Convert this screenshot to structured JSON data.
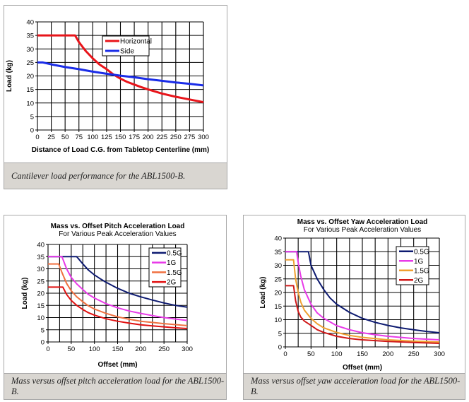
{
  "chart_data": [
    {
      "type": "line",
      "title": "",
      "subtitle": "",
      "xlabel": "Distance of Load C.G. from Tabletop Centerline (mm)",
      "ylabel": "Load (kg)",
      "xlim": [
        0,
        300
      ],
      "ylim": [
        0,
        40
      ],
      "xticks": [
        0,
        25,
        50,
        75,
        100,
        125,
        150,
        175,
        200,
        225,
        250,
        275,
        300
      ],
      "yticks": [
        0,
        5,
        10,
        15,
        20,
        25,
        30,
        35,
        40
      ],
      "grid": true,
      "legend_position": "top-center",
      "caption": "Cantilever load performance for the ABL1500-B.",
      "series": [
        {
          "name": "Horizontal",
          "color": "#e8141a",
          "x": [
            0,
            68,
            75,
            87,
            100,
            112,
            125,
            137,
            150,
            162,
            175,
            187,
            200,
            225,
            250,
            275,
            300
          ],
          "y": [
            35,
            35,
            32.5,
            29.3,
            26.5,
            24.3,
            22.5,
            20.6,
            19,
            17.8,
            16.8,
            15.9,
            15,
            13.5,
            12.3,
            11.3,
            10.3
          ]
        },
        {
          "name": "Side",
          "color": "#1a2ce8",
          "x": [
            0,
            10,
            25,
            50,
            75,
            100,
            125,
            150,
            175,
            200,
            225,
            250,
            275,
            300
          ],
          "y": [
            25,
            25,
            24.3,
            23.3,
            22.5,
            21.6,
            20.8,
            20.1,
            19.5,
            18.8,
            18.2,
            17.6,
            17.1,
            16.5
          ]
        }
      ]
    },
    {
      "type": "line",
      "title": "Mass vs. Offset Pitch Acceleration Load",
      "subtitle": "For Various Peak Acceleration Values",
      "xlabel": "Offset (mm)",
      "ylabel": "Load (kg)",
      "xlim": [
        0,
        300
      ],
      "ylim": [
        0,
        40
      ],
      "xticks": [
        0,
        50,
        100,
        150,
        200,
        250,
        300
      ],
      "yticks": [
        0,
        5,
        10,
        15,
        20,
        25,
        30,
        35,
        40
      ],
      "grid": true,
      "legend_position": "top-right",
      "caption": "Mass versus offset pitch acceleration load for the ABL1500-B.",
      "series": [
        {
          "name": "0.5G",
          "color": "#0d1a70",
          "x": [
            0,
            62,
            75,
            87,
            100,
            112,
            125,
            150,
            175,
            200,
            225,
            250,
            275,
            300
          ],
          "y": [
            35,
            35,
            32,
            29.5,
            27.5,
            26,
            24.5,
            22,
            20,
            18.5,
            17.2,
            16,
            15,
            14.3
          ]
        },
        {
          "name": "1G",
          "color": "#e83ae8",
          "x": [
            0,
            30,
            40,
            50,
            62,
            75,
            87,
            100,
            125,
            150,
            175,
            200,
            225,
            250,
            275,
            300
          ],
          "y": [
            35,
            35,
            30,
            26.5,
            23.8,
            21.5,
            19.5,
            18,
            15.7,
            14,
            12.7,
            11.7,
            10.8,
            10,
            9.4,
            8.8
          ]
        },
        {
          "name": "1.5G",
          "color": "#f07040",
          "x": [
            0,
            23,
            30,
            40,
            50,
            62,
            75,
            87,
            100,
            125,
            150,
            175,
            200,
            225,
            250,
            275,
            300
          ],
          "y": [
            32,
            32,
            28.5,
            24,
            21,
            18.5,
            16.5,
            14.8,
            13.5,
            11.7,
            10.3,
            9.3,
            8.5,
            8,
            7.5,
            7.1,
            6.7
          ]
        },
        {
          "name": "2G",
          "color": "#e01010",
          "x": [
            0,
            32,
            40,
            50,
            62,
            75,
            87,
            100,
            125,
            150,
            175,
            200,
            225,
            250,
            275,
            300
          ],
          "y": [
            22.5,
            22.5,
            19.5,
            17,
            15,
            13.3,
            12,
            11,
            9.5,
            8.5,
            7.7,
            7,
            6.6,
            6.2,
            5.8,
            5.5
          ]
        }
      ]
    },
    {
      "type": "line",
      "title": "Mass vs. Offset Yaw Acceleration Load",
      "subtitle": "For Various Peak Acceleration Values",
      "xlabel": "Offset (mm)",
      "ylabel": "Load (kg)",
      "xlim": [
        0,
        300
      ],
      "ylim": [
        0,
        40
      ],
      "xticks": [
        0,
        50,
        100,
        150,
        200,
        250,
        300
      ],
      "yticks": [
        0,
        5,
        10,
        15,
        20,
        25,
        30,
        35,
        40
      ],
      "grid": true,
      "legend_position": "top-right",
      "caption": "Mass versus offset yaw acceleration load for the ABL1500-B.",
      "series": [
        {
          "name": "0.5G",
          "color": "#0d1a70",
          "x": [
            0,
            45,
            50,
            62,
            75,
            87,
            100,
            125,
            150,
            175,
            200,
            225,
            250,
            275,
            300
          ],
          "y": [
            35,
            35,
            30,
            25,
            21,
            18,
            15.7,
            12.7,
            10.5,
            9,
            7.9,
            7,
            6.3,
            5.7,
            5.2
          ]
        },
        {
          "name": "1G",
          "color": "#e83ae8",
          "x": [
            0,
            22,
            25,
            30,
            37,
            50,
            62,
            75,
            100,
            125,
            150,
            175,
            200,
            250,
            300
          ],
          "y": [
            35,
            35,
            31,
            26,
            21,
            15.7,
            12.5,
            10.5,
            7.8,
            6.3,
            5.2,
            4.5,
            3.9,
            3.1,
            2.6
          ]
        },
        {
          "name": "1.5G",
          "color": "#f0a030",
          "x": [
            0,
            16,
            20,
            25,
            30,
            37,
            50,
            62,
            75,
            100,
            125,
            150,
            200,
            250,
            300
          ],
          "y": [
            32,
            32,
            25,
            20,
            16.5,
            13.5,
            10.5,
            8.5,
            7,
            5.3,
            4.2,
            3.5,
            2.6,
            2.1,
            1.8
          ]
        },
        {
          "name": "2G",
          "color": "#d01818",
          "x": [
            0,
            16,
            20,
            25,
            30,
            37,
            50,
            62,
            75,
            100,
            125,
            150,
            200,
            250,
            300
          ],
          "y": [
            22.5,
            22.5,
            17,
            13,
            11,
            9.5,
            7.9,
            6.3,
            5.3,
            3.9,
            3.1,
            2.6,
            2,
            1.6,
            1.3
          ]
        }
      ]
    }
  ]
}
